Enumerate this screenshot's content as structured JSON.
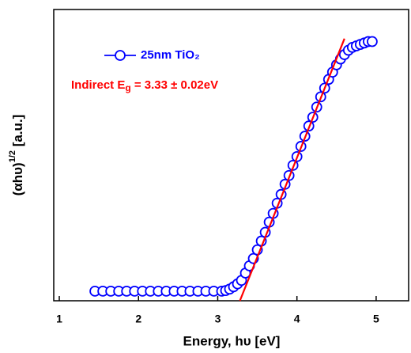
{
  "chart_data": {
    "type": "scatter",
    "xlabel": "Energy, hυ [eV]",
    "ylabel": {
      "main": "(αhυ)",
      "superscript": "1/2",
      "unit": " [a.u.]"
    },
    "annotation": {
      "prefix": "Indirect E",
      "subscript": "g",
      "suffix": " = 3.33 ± 0.02eV",
      "color": "#ff0000"
    },
    "xlim": [
      0.93,
      5.41
    ],
    "ylim": [
      0,
      10
    ],
    "xticks": [
      1,
      2,
      3,
      4,
      5
    ],
    "series": [
      {
        "name": "25nm TiO₂",
        "color": "#0000ff",
        "x": [
          1.45,
          1.55,
          1.65,
          1.75,
          1.85,
          1.95,
          2.05,
          2.15,
          2.25,
          2.35,
          2.45,
          2.55,
          2.65,
          2.75,
          2.85,
          2.95,
          3.05,
          3.1,
          3.15,
          3.2,
          3.25,
          3.3,
          3.35,
          3.4,
          3.45,
          3.5,
          3.55,
          3.6,
          3.65,
          3.7,
          3.75,
          3.8,
          3.85,
          3.9,
          3.95,
          4.0,
          4.05,
          4.1,
          4.15,
          4.2,
          4.25,
          4.3,
          4.35,
          4.4,
          4.45,
          4.5,
          4.55,
          4.6,
          4.65,
          4.7,
          4.75,
          4.8,
          4.85,
          4.9,
          4.95
        ],
        "values": [
          0.33,
          0.33,
          0.33,
          0.33,
          0.33,
          0.33,
          0.33,
          0.33,
          0.33,
          0.33,
          0.33,
          0.33,
          0.33,
          0.33,
          0.33,
          0.33,
          0.33,
          0.35,
          0.4,
          0.48,
          0.58,
          0.7,
          0.95,
          1.2,
          1.45,
          1.75,
          2.05,
          2.35,
          2.7,
          3.0,
          3.35,
          3.65,
          4.0,
          4.3,
          4.65,
          4.95,
          5.3,
          5.65,
          6.0,
          6.3,
          6.65,
          7.0,
          7.3,
          7.6,
          7.85,
          8.1,
          8.3,
          8.45,
          8.6,
          8.7,
          8.75,
          8.8,
          8.85,
          8.9,
          8.9
        ]
      }
    ],
    "fit_line": {
      "x": [
        3.28,
        4.6
      ],
      "values": [
        0,
        9.0
      ],
      "color": "#ff0000"
    }
  }
}
